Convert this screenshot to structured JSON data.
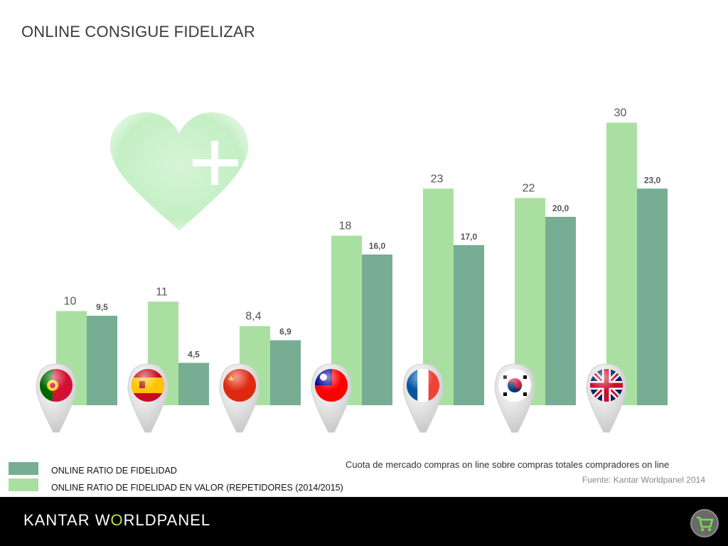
{
  "title": "ONLINE CONSIGUE FIDELIZAR",
  "chart_data": {
    "type": "bar",
    "categories": [
      "",
      "",
      "",
      "",
      "",
      "",
      ""
    ],
    "category_icons": [
      "portugal-flag-icon",
      "spain-flag-icon",
      "china-flag-icon",
      "taiwan-flag-icon",
      "france-flag-icon",
      "south-korea-flag-icon",
      "uk-flag-icon"
    ],
    "series": [
      {
        "name": "ONLINE RATIO DE FIDELIDAD EN VALOR (REPETIDORES (2014/2015)",
        "color": "#a9e0a1",
        "values": [
          10,
          11,
          8.4,
          18,
          23,
          22,
          30
        ],
        "labels": [
          "10",
          "11",
          "8,4",
          "18",
          "23",
          "22",
          "30"
        ]
      },
      {
        "name": "ONLINE RATIO DE FIDELIDAD",
        "color": "#76ad93",
        "values": [
          9.5,
          4.5,
          6.9,
          16.0,
          17.0,
          20.0,
          23.0
        ],
        "labels": [
          "9,5",
          "4,5",
          "6,9",
          "16,0",
          "17,0",
          "20,0",
          "23,0"
        ]
      }
    ],
    "ylim": [
      0,
      35
    ],
    "grid": false,
    "legend_position": "bottom-left"
  },
  "decoration": {
    "heart_icon": "heart-plus-icon",
    "heart_color": "#c8f0c8"
  },
  "legend": {
    "item1": "ONLINE RATIO DE FIDELIDAD",
    "item2": "ONLINE RATIO DE FIDELIDAD EN VALOR (REPETIDORES (2014/2015)"
  },
  "note": "Cuota de mercado  compras on line sobre  compras totales compradores on line",
  "source": "Fuente: Kantar Worldpanel 2014",
  "footer": {
    "brand_part1": "KANTAR W",
    "brand_part2": "O",
    "brand_part3": "RLDPANEL",
    "cart_icon": "shopping-cart-icon"
  }
}
